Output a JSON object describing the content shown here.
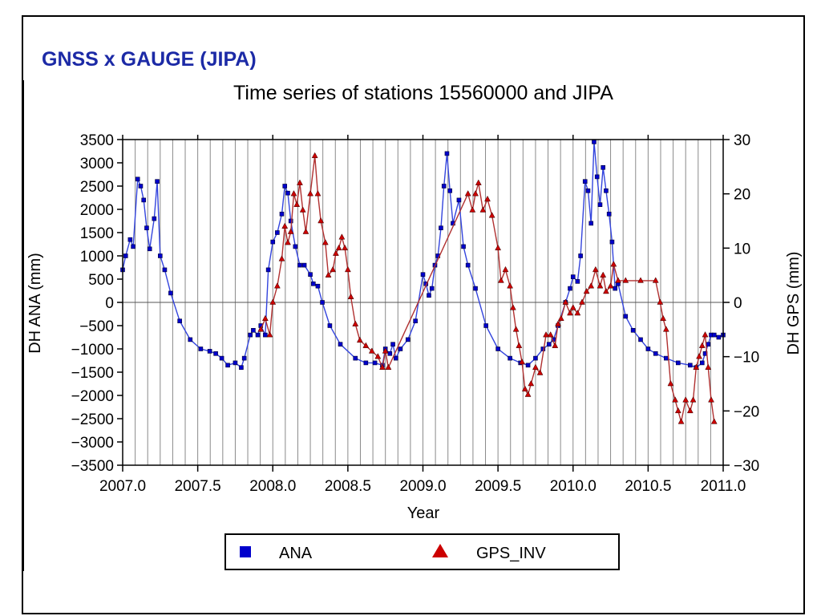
{
  "slide": {
    "title": "GNSS x GAUGE (JIPA)"
  },
  "chart_data": {
    "type": "line",
    "title": "Time series of stations 15560000 and JIPA",
    "xlabel": "Year",
    "ylabel": "DH ANA (mm)",
    "y2label": "DH GPS (mm)",
    "xlim": [
      2007.0,
      2011.0
    ],
    "ylim": [
      -3500,
      3500
    ],
    "y2lim": [
      -30,
      30
    ],
    "x_ticks": [
      "2007.0",
      "2007.5",
      "2008.0",
      "2008.5",
      "2009.0",
      "2009.5",
      "2010.0",
      "2010.5",
      "2011.0"
    ],
    "y_ticks": [
      "3500",
      "3000",
      "2500",
      "2000",
      "1500",
      "1000",
      "500",
      "0",
      "−500",
      "−1000",
      "−1500",
      "−2000",
      "−2500",
      "−3000",
      "−3500"
    ],
    "y2_ticks": [
      "30",
      "20",
      "10",
      "0",
      "−10",
      "−20",
      "−30"
    ],
    "grid": "vertical monthly lines",
    "legend_position": "bottom",
    "series": [
      {
        "name": "ANA",
        "axis": "left",
        "color": "#0000cc",
        "marker": "square",
        "x": [
          2007.0,
          2007.02,
          2007.05,
          2007.07,
          2007.1,
          2007.12,
          2007.14,
          2007.16,
          2007.18,
          2007.21,
          2007.23,
          2007.25,
          2007.28,
          2007.32,
          2007.38,
          2007.45,
          2007.52,
          2007.58,
          2007.62,
          2007.66,
          2007.7,
          2007.75,
          2007.79,
          2007.81,
          2007.85,
          2007.87,
          2007.9,
          2007.92,
          2007.95,
          2007.97,
          2008.0,
          2008.03,
          2008.06,
          2008.08,
          2008.1,
          2008.12,
          2008.15,
          2008.18,
          2008.21,
          2008.25,
          2008.27,
          2008.3,
          2008.33,
          2008.38,
          2008.45,
          2008.55,
          2008.62,
          2008.68,
          2008.73,
          2008.75,
          2008.78,
          2008.8,
          2008.82,
          2008.85,
          2008.9,
          2008.95,
          2009.0,
          2009.02,
          2009.04,
          2009.06,
          2009.08,
          2009.1,
          2009.12,
          2009.14,
          2009.16,
          2009.18,
          2009.2,
          2009.24,
          2009.27,
          2009.3,
          2009.35,
          2009.42,
          2009.5,
          2009.58,
          2009.65,
          2009.7,
          2009.75,
          2009.8,
          2009.84,
          2009.87,
          2009.9,
          2009.95,
          2009.98,
          2010.0,
          2010.03,
          2010.05,
          2010.08,
          2010.1,
          2010.12,
          2010.14,
          2010.16,
          2010.18,
          2010.2,
          2010.22,
          2010.24,
          2010.26,
          2010.28,
          2010.3,
          2010.35,
          2010.4,
          2010.45,
          2010.5,
          2010.55,
          2010.62,
          2010.7,
          2010.78,
          2010.82,
          2010.86,
          2010.88,
          2010.9,
          2010.92,
          2010.94,
          2010.97,
          2011.0
        ],
        "y": [
          700,
          1000,
          1350,
          1200,
          2650,
          2500,
          2200,
          1600,
          1150,
          1800,
          2600,
          1000,
          700,
          200,
          -400,
          -800,
          -1000,
          -1050,
          -1100,
          -1200,
          -1350,
          -1300,
          -1400,
          -1200,
          -700,
          -600,
          -700,
          -500,
          -700,
          700,
          1300,
          1500,
          1900,
          2500,
          2350,
          1750,
          1200,
          800,
          800,
          600,
          400,
          350,
          0,
          -500,
          -900,
          -1200,
          -1300,
          -1300,
          -1350,
          -1000,
          -1100,
          -900,
          -1200,
          -1000,
          -800,
          -400,
          600,
          400,
          150,
          300,
          800,
          1000,
          1600,
          2500,
          3200,
          2400,
          1700,
          2200,
          1200,
          800,
          300,
          -500,
          -1000,
          -1200,
          -1300,
          -1350,
          -1200,
          -1000,
          -900,
          -800,
          -500,
          0,
          300,
          550,
          450,
          1000,
          2600,
          2400,
          1700,
          3450,
          2700,
          2100,
          2900,
          2400,
          1900,
          1300,
          300,
          400,
          -300,
          -600,
          -800,
          -1000,
          -1100,
          -1200,
          -1300,
          -1350,
          -1400,
          -1300,
          -1100,
          -900,
          -700,
          -700,
          -750,
          -700
        ]
      },
      {
        "name": "GPS_INV",
        "axis": "right",
        "color": "#cc0000",
        "marker": "triangle",
        "x": [
          2007.92,
          2007.95,
          2007.98,
          2008.0,
          2008.03,
          2008.06,
          2008.08,
          2008.1,
          2008.12,
          2008.14,
          2008.16,
          2008.18,
          2008.2,
          2008.22,
          2008.25,
          2008.28,
          2008.3,
          2008.32,
          2008.35,
          2008.37,
          2008.4,
          2008.42,
          2008.44,
          2008.46,
          2008.48,
          2008.5,
          2008.52,
          2008.55,
          2008.58,
          2008.62,
          2008.66,
          2008.7,
          2008.73,
          2008.75,
          2008.77,
          2009.3,
          2009.33,
          2009.35,
          2009.37,
          2009.4,
          2009.43,
          2009.46,
          2009.5,
          2009.52,
          2009.55,
          2009.58,
          2009.6,
          2009.62,
          2009.64,
          2009.66,
          2009.68,
          2009.7,
          2009.72,
          2009.75,
          2009.78,
          2009.82,
          2009.85,
          2009.88,
          2009.9,
          2009.92,
          2009.95,
          2009.98,
          2010.0,
          2010.03,
          2010.06,
          2010.09,
          2010.12,
          2010.15,
          2010.18,
          2010.2,
          2010.22,
          2010.25,
          2010.27,
          2010.3,
          2010.35,
          2010.45,
          2010.55,
          2010.58,
          2010.6,
          2010.62,
          2010.65,
          2010.68,
          2010.7,
          2010.72,
          2010.75,
          2010.78,
          2010.8,
          2010.82,
          2010.84,
          2010.86,
          2010.88,
          2010.9,
          2010.92,
          2010.94
        ],
        "y": [
          -5,
          -3,
          -6,
          0,
          3,
          8,
          14,
          11,
          13,
          20,
          18,
          22,
          17,
          13,
          20,
          27,
          20,
          15,
          11,
          5,
          6,
          9,
          10,
          12,
          10,
          6,
          1,
          -4,
          -7,
          -8,
          -9,
          -10,
          -12,
          -9,
          -12,
          20,
          17,
          20,
          22,
          17,
          19,
          16,
          10,
          4,
          6,
          3,
          -1,
          -5,
          -8,
          -11,
          -16,
          -17,
          -15,
          -12,
          -13,
          -6,
          -6,
          -8,
          -4,
          -3,
          0,
          -2,
          -1,
          -2,
          0,
          2,
          3,
          6,
          3,
          5,
          2,
          3,
          7,
          4,
          4,
          4,
          4,
          0,
          -3,
          -5,
          -15,
          -18,
          -20,
          -22,
          -18,
          -20,
          -18,
          -12,
          -10,
          -8,
          -6,
          -12,
          -18,
          -22
        ]
      }
    ]
  }
}
